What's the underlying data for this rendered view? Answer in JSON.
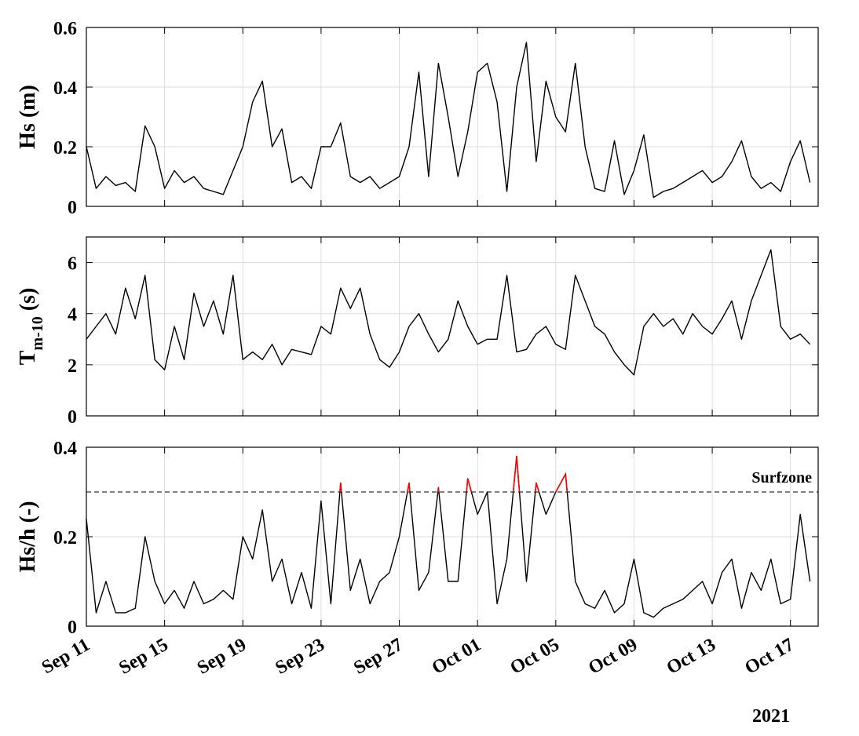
{
  "chart_data": {
    "type": "line",
    "x": [
      "2021-09-11T00:00",
      "2021-09-11T12:00",
      "2021-09-12T00:00",
      "2021-09-12T12:00",
      "2021-09-13T00:00",
      "2021-09-13T12:00",
      "2021-09-14T00:00",
      "2021-09-14T12:00",
      "2021-09-15T00:00",
      "2021-09-15T12:00",
      "2021-09-16T00:00",
      "2021-09-16T12:00",
      "2021-09-17T00:00",
      "2021-09-17T12:00",
      "2021-09-18T00:00",
      "2021-09-18T12:00",
      "2021-09-19T00:00",
      "2021-09-19T12:00",
      "2021-09-20T00:00",
      "2021-09-20T12:00",
      "2021-09-21T00:00",
      "2021-09-21T12:00",
      "2021-09-22T00:00",
      "2021-09-22T12:00",
      "2021-09-23T00:00",
      "2021-09-23T12:00",
      "2021-09-24T00:00",
      "2021-09-24T12:00",
      "2021-09-25T00:00",
      "2021-09-25T12:00",
      "2021-09-26T00:00",
      "2021-09-26T12:00",
      "2021-09-27T00:00",
      "2021-09-27T12:00",
      "2021-09-28T00:00",
      "2021-09-28T12:00",
      "2021-09-29T00:00",
      "2021-09-29T12:00",
      "2021-09-30T00:00",
      "2021-09-30T12:00",
      "2021-10-01T00:00",
      "2021-10-01T12:00",
      "2021-10-02T00:00",
      "2021-10-02T12:00",
      "2021-10-03T00:00",
      "2021-10-03T12:00",
      "2021-10-04T00:00",
      "2021-10-04T12:00",
      "2021-10-05T00:00",
      "2021-10-05T12:00",
      "2021-10-06T00:00",
      "2021-10-06T12:00",
      "2021-10-07T00:00",
      "2021-10-07T12:00",
      "2021-10-08T00:00",
      "2021-10-08T12:00",
      "2021-10-09T00:00",
      "2021-10-09T12:00",
      "2021-10-10T00:00",
      "2021-10-10T12:00",
      "2021-10-11T00:00",
      "2021-10-11T12:00",
      "2021-10-12T00:00",
      "2021-10-12T12:00",
      "2021-10-13T00:00",
      "2021-10-13T12:00",
      "2021-10-14T00:00",
      "2021-10-14T12:00",
      "2021-10-15T00:00",
      "2021-10-15T12:00",
      "2021-10-16T00:00",
      "2021-10-16T12:00",
      "2021-10-17T00:00",
      "2021-10-17T12:00",
      "2021-10-18T00:00"
    ],
    "xlim": [
      "2021-09-11T00:00",
      "2021-10-18T10:00"
    ],
    "xticks": [
      {
        "value": "2021-09-11T00:00",
        "label": "Sep 11"
      },
      {
        "value": "2021-09-15T00:00",
        "label": "Sep 15"
      },
      {
        "value": "2021-09-19T00:00",
        "label": "Sep 19"
      },
      {
        "value": "2021-09-23T00:00",
        "label": "Sep 23"
      },
      {
        "value": "2021-09-27T00:00",
        "label": "Sep 27"
      },
      {
        "value": "2021-10-01T00:00",
        "label": "Oct 01"
      },
      {
        "value": "2021-10-05T00:00",
        "label": "Oct 05"
      },
      {
        "value": "2021-10-09T00:00",
        "label": "Oct 09"
      },
      {
        "value": "2021-10-13T00:00",
        "label": "Oct 13"
      },
      {
        "value": "2021-10-17T00:00",
        "label": "Oct 17"
      }
    ],
    "xlabel": "2021",
    "grid": true,
    "panels": [
      {
        "ylabel": [
          "Hs (m)"
        ],
        "ylim": [
          0,
          0.6
        ],
        "yticks": [
          0,
          0.2,
          0.4,
          0.6
        ],
        "series": [
          {
            "name": "Hs",
            "color": "#000000",
            "values": [
              0.2,
              0.06,
              0.1,
              0.07,
              0.08,
              0.05,
              0.27,
              0.2,
              0.06,
              0.12,
              0.08,
              0.1,
              0.06,
              0.05,
              0.04,
              0.12,
              0.2,
              0.35,
              0.42,
              0.2,
              0.26,
              0.08,
              0.1,
              0.06,
              0.2,
              0.2,
              0.28,
              0.1,
              0.08,
              0.1,
              0.06,
              0.08,
              0.1,
              0.2,
              0.45,
              0.1,
              0.48,
              0.3,
              0.1,
              0.25,
              0.45,
              0.48,
              0.35,
              0.05,
              0.4,
              0.55,
              0.15,
              0.42,
              0.3,
              0.25,
              0.48,
              0.2,
              0.06,
              0.05,
              0.22,
              0.04,
              0.12,
              0.24,
              0.03,
              0.05,
              0.06,
              0.08,
              0.1,
              0.12,
              0.08,
              0.1,
              0.15,
              0.22,
              0.1,
              0.06,
              0.08,
              0.05,
              0.15,
              0.22,
              0.08
            ]
          }
        ]
      },
      {
        "ylabel": [
          "T",
          "m-10",
          " (s)"
        ],
        "ylim": [
          0,
          7
        ],
        "yticks": [
          0,
          2,
          4,
          6
        ],
        "series": [
          {
            "name": "Tm-10",
            "color": "#000000",
            "values": [
              3,
              3.5,
              4,
              3.2,
              5,
              3.8,
              5.5,
              2.2,
              1.8,
              3.5,
              2.2,
              4.8,
              3.5,
              4.5,
              3.2,
              5.5,
              2.2,
              2.5,
              2.2,
              2.8,
              2,
              2.6,
              2.5,
              2.4,
              3.5,
              3.2,
              5,
              4.2,
              5,
              3.2,
              2.2,
              1.9,
              2.5,
              3.5,
              4,
              3.2,
              2.5,
              3,
              4.5,
              3.5,
              2.8,
              3,
              3,
              5.5,
              2.5,
              2.6,
              3.2,
              3.5,
              2.8,
              2.6,
              5.5,
              4.5,
              3.5,
              3.2,
              2.5,
              2,
              1.6,
              3.5,
              4,
              3.5,
              3.8,
              3.2,
              4,
              3.5,
              3.2,
              3.8,
              4.5,
              3,
              4.5,
              5.5,
              6.5,
              3.5,
              3,
              3.2,
              2.8
            ]
          }
        ]
      },
      {
        "ylabel": [
          "Hs/h (-)"
        ],
        "ylim": [
          0,
          0.4
        ],
        "yticks": [
          0,
          0.2,
          0.4
        ],
        "threshold": {
          "value": 0.3,
          "label": "Surfzone",
          "color": "#555555",
          "above_color": "#ff0000"
        },
        "series": [
          {
            "name": "Hs/h",
            "color": "#000000",
            "values": [
              0.24,
              0.03,
              0.1,
              0.03,
              0.03,
              0.04,
              0.2,
              0.1,
              0.05,
              0.08,
              0.04,
              0.1,
              0.05,
              0.06,
              0.08,
              0.06,
              0.2,
              0.15,
              0.26,
              0.1,
              0.15,
              0.05,
              0.12,
              0.04,
              0.28,
              0.05,
              0.32,
              0.08,
              0.15,
              0.05,
              0.1,
              0.12,
              0.2,
              0.32,
              0.08,
              0.12,
              0.31,
              0.1,
              0.1,
              0.33,
              0.25,
              0.3,
              0.05,
              0.15,
              0.38,
              0.1,
              0.32,
              0.25,
              0.3,
              0.34,
              0.1,
              0.05,
              0.04,
              0.08,
              0.03,
              0.05,
              0.15,
              0.03,
              0.02,
              0.04,
              0.05,
              0.06,
              0.08,
              0.1,
              0.05,
              0.12,
              0.15,
              0.04,
              0.12,
              0.08,
              0.15,
              0.05,
              0.06,
              0.25,
              0.1
            ]
          }
        ]
      }
    ]
  }
}
